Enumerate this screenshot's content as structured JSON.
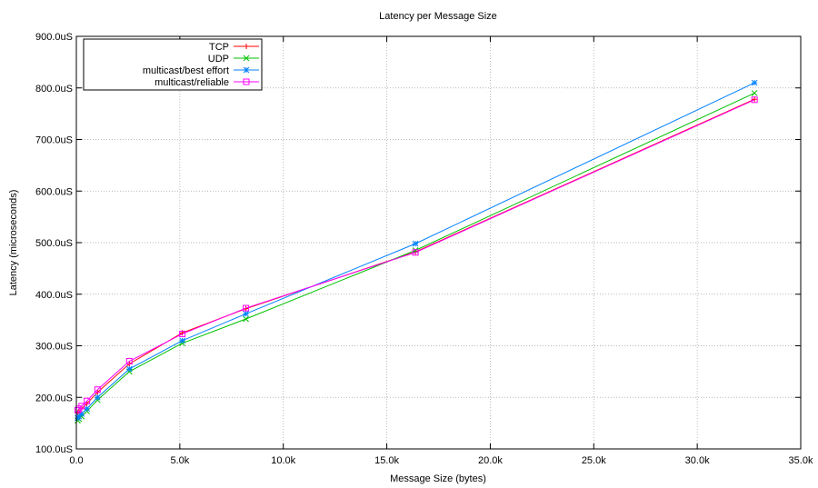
{
  "chart_data": {
    "type": "line",
    "title": "Latency per Message Size",
    "xlabel": "Message Size (bytes)",
    "ylabel": "Latency (microseconds)",
    "xlim": [
      0,
      35000
    ],
    "ylim": [
      100,
      900
    ],
    "xticks": [
      {
        "value": 0,
        "label": "0.0"
      },
      {
        "value": 5000,
        "label": "5.0k"
      },
      {
        "value": 10000,
        "label": "10.0k"
      },
      {
        "value": 15000,
        "label": "15.0k"
      },
      {
        "value": 20000,
        "label": "20.0k"
      },
      {
        "value": 25000,
        "label": "25.0k"
      },
      {
        "value": 30000,
        "label": "30.0k"
      },
      {
        "value": 35000,
        "label": "35.0k"
      }
    ],
    "yticks": [
      {
        "value": 100,
        "label": "100.0uS"
      },
      {
        "value": 200,
        "label": "200.0uS"
      },
      {
        "value": 300,
        "label": "300.0uS"
      },
      {
        "value": 400,
        "label": "400.0uS"
      },
      {
        "value": 500,
        "label": "500.0uS"
      },
      {
        "value": 600,
        "label": "600.0uS"
      },
      {
        "value": 700,
        "label": "700.0uS"
      },
      {
        "value": 800,
        "label": "800.0uS"
      },
      {
        "value": 900,
        "label": "900.0uS"
      }
    ],
    "grid": true,
    "legend_position": "top-left",
    "series": [
      {
        "name": "TCP",
        "color": "#ff0000",
        "marker": "plus",
        "points": [
          [
            64,
            170
          ],
          [
            128,
            172
          ],
          [
            256,
            178
          ],
          [
            512,
            188
          ],
          [
            1024,
            210
          ],
          [
            2560,
            265
          ],
          [
            5120,
            325
          ],
          [
            8192,
            372
          ],
          [
            16384,
            482
          ],
          [
            32768,
            778
          ]
        ]
      },
      {
        "name": "UDP",
        "color": "#00c000",
        "marker": "cross",
        "points": [
          [
            64,
            155
          ],
          [
            128,
            158
          ],
          [
            256,
            163
          ],
          [
            512,
            173
          ],
          [
            1024,
            195
          ],
          [
            2560,
            250
          ],
          [
            5120,
            305
          ],
          [
            8192,
            352
          ],
          [
            16384,
            485
          ],
          [
            32768,
            790
          ]
        ]
      },
      {
        "name": "multicast/best effort",
        "color": "#0080ff",
        "marker": "star",
        "points": [
          [
            64,
            160
          ],
          [
            128,
            163
          ],
          [
            256,
            168
          ],
          [
            512,
            178
          ],
          [
            1024,
            200
          ],
          [
            2560,
            255
          ],
          [
            5120,
            310
          ],
          [
            8192,
            362
          ],
          [
            16384,
            498
          ],
          [
            32768,
            810
          ]
        ]
      },
      {
        "name": "multicast/reliable",
        "color": "#ff00ff",
        "marker": "square",
        "points": [
          [
            64,
            175
          ],
          [
            128,
            178
          ],
          [
            256,
            183
          ],
          [
            512,
            193
          ],
          [
            1024,
            215
          ],
          [
            2560,
            270
          ],
          [
            5120,
            323
          ],
          [
            8192,
            373
          ],
          [
            16384,
            481
          ],
          [
            32768,
            777
          ]
        ]
      }
    ]
  }
}
